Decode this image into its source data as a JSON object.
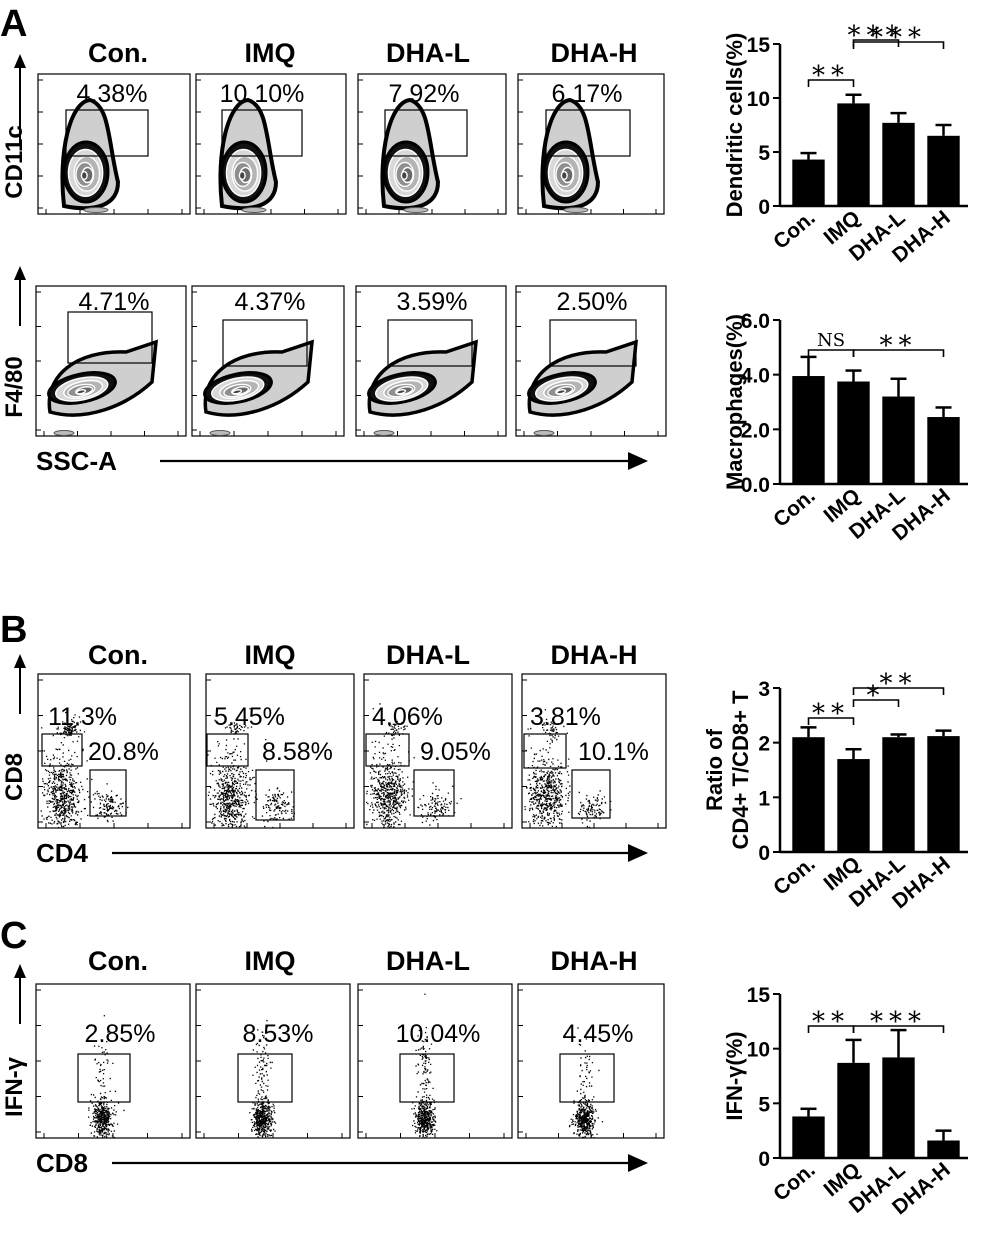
{
  "panels": [
    {
      "letter": "A"
    },
    {
      "letter": "B"
    },
    {
      "letter": "C"
    }
  ],
  "groups": [
    "Con.",
    "IMQ",
    "DHA-L",
    "DHA-H"
  ],
  "flow_rows": [
    {
      "id": "dc",
      "y_axis": "CD11c",
      "x_axis": "",
      "gates": [
        [
          "4.38%"
        ],
        [
          "10.10%"
        ],
        [
          "7.92%"
        ],
        [
          "6.17%"
        ]
      ]
    },
    {
      "id": "mac",
      "y_axis": "F4/80",
      "x_axis": "SSC-A",
      "gates": [
        [
          "4.71%"
        ],
        [
          "4.37%"
        ],
        [
          "3.59%"
        ],
        [
          "2.50%"
        ]
      ]
    },
    {
      "id": "cd",
      "y_axis": "CD8",
      "x_axis": "CD4",
      "gates": [
        [
          "11.3%",
          "20.8%"
        ],
        [
          "5.45%",
          "8.58%"
        ],
        [
          "4.06%",
          "9.05%"
        ],
        [
          "3.81%",
          "10.1%"
        ]
      ]
    },
    {
      "id": "ifn",
      "y_axis": "IFN-γ",
      "x_axis": "CD8",
      "gates": [
        [
          "2.85%"
        ],
        [
          "8.53%"
        ],
        [
          "10.04%"
        ],
        [
          "4.45%"
        ]
      ]
    }
  ],
  "chart_data": [
    {
      "type": "bar",
      "ylabel": "Dendritic cells(%)",
      "categories": [
        "Con.",
        "IMQ",
        "DHA-L",
        "DHA-H"
      ],
      "values": [
        4.3,
        9.5,
        7.7,
        6.5
      ],
      "errors": [
        0.6,
        0.8,
        0.9,
        1.0
      ],
      "ylim": [
        0,
        15
      ],
      "yticks": [
        "0",
        "5",
        "10",
        "15"
      ],
      "significance": [
        {
          "from": "Con.",
          "to": "IMQ",
          "label": "**"
        },
        {
          "from": "IMQ",
          "to": "DHA-L",
          "label": "***"
        },
        {
          "from": "IMQ",
          "to": "DHA-H",
          "label": "***"
        }
      ]
    },
    {
      "type": "bar",
      "ylabel": "Macrophages(%)",
      "categories": [
        "Con.",
        "IMQ",
        "DHA-L",
        "DHA-H"
      ],
      "values": [
        3.95,
        3.75,
        3.2,
        2.45
      ],
      "errors": [
        0.7,
        0.4,
        0.65,
        0.35
      ],
      "ylim": [
        0,
        6
      ],
      "yticks": [
        "0.0",
        "2.0",
        "4.0",
        "6.0"
      ],
      "significance": [
        {
          "from": "Con.",
          "to": "IMQ",
          "label": "NS"
        },
        {
          "from": "IMQ",
          "to": "DHA-H",
          "label": "**"
        }
      ]
    },
    {
      "type": "bar",
      "ylabel": "Ratio of CD4+ T/CD8+ T",
      "categories": [
        "Con.",
        "IMQ",
        "DHA-L",
        "DHA-H"
      ],
      "values": [
        2.1,
        1.7,
        2.1,
        2.12
      ],
      "errors": [
        0.18,
        0.18,
        0.05,
        0.1
      ],
      "ylim": [
        0,
        3
      ],
      "yticks": [
        "0",
        "1",
        "2",
        "3"
      ],
      "significance": [
        {
          "from": "Con.",
          "to": "IMQ",
          "label": "**"
        },
        {
          "from": "IMQ",
          "to": "DHA-L",
          "label": "*"
        },
        {
          "from": "IMQ",
          "to": "DHA-H",
          "label": "**"
        }
      ]
    },
    {
      "type": "bar",
      "ylabel": "IFN-γ(%)",
      "categories": [
        "Con.",
        "IMQ",
        "DHA-L",
        "DHA-H"
      ],
      "values": [
        3.8,
        8.7,
        9.2,
        1.6
      ],
      "errors": [
        0.7,
        2.1,
        2.5,
        0.9
      ],
      "ylim": [
        0,
        15
      ],
      "yticks": [
        "0",
        "5",
        "10",
        "15"
      ],
      "significance": [
        {
          "from": "Con.",
          "to": "IMQ",
          "label": "**"
        },
        {
          "from": "IMQ",
          "to": "DHA-H",
          "label": "***"
        }
      ]
    }
  ]
}
